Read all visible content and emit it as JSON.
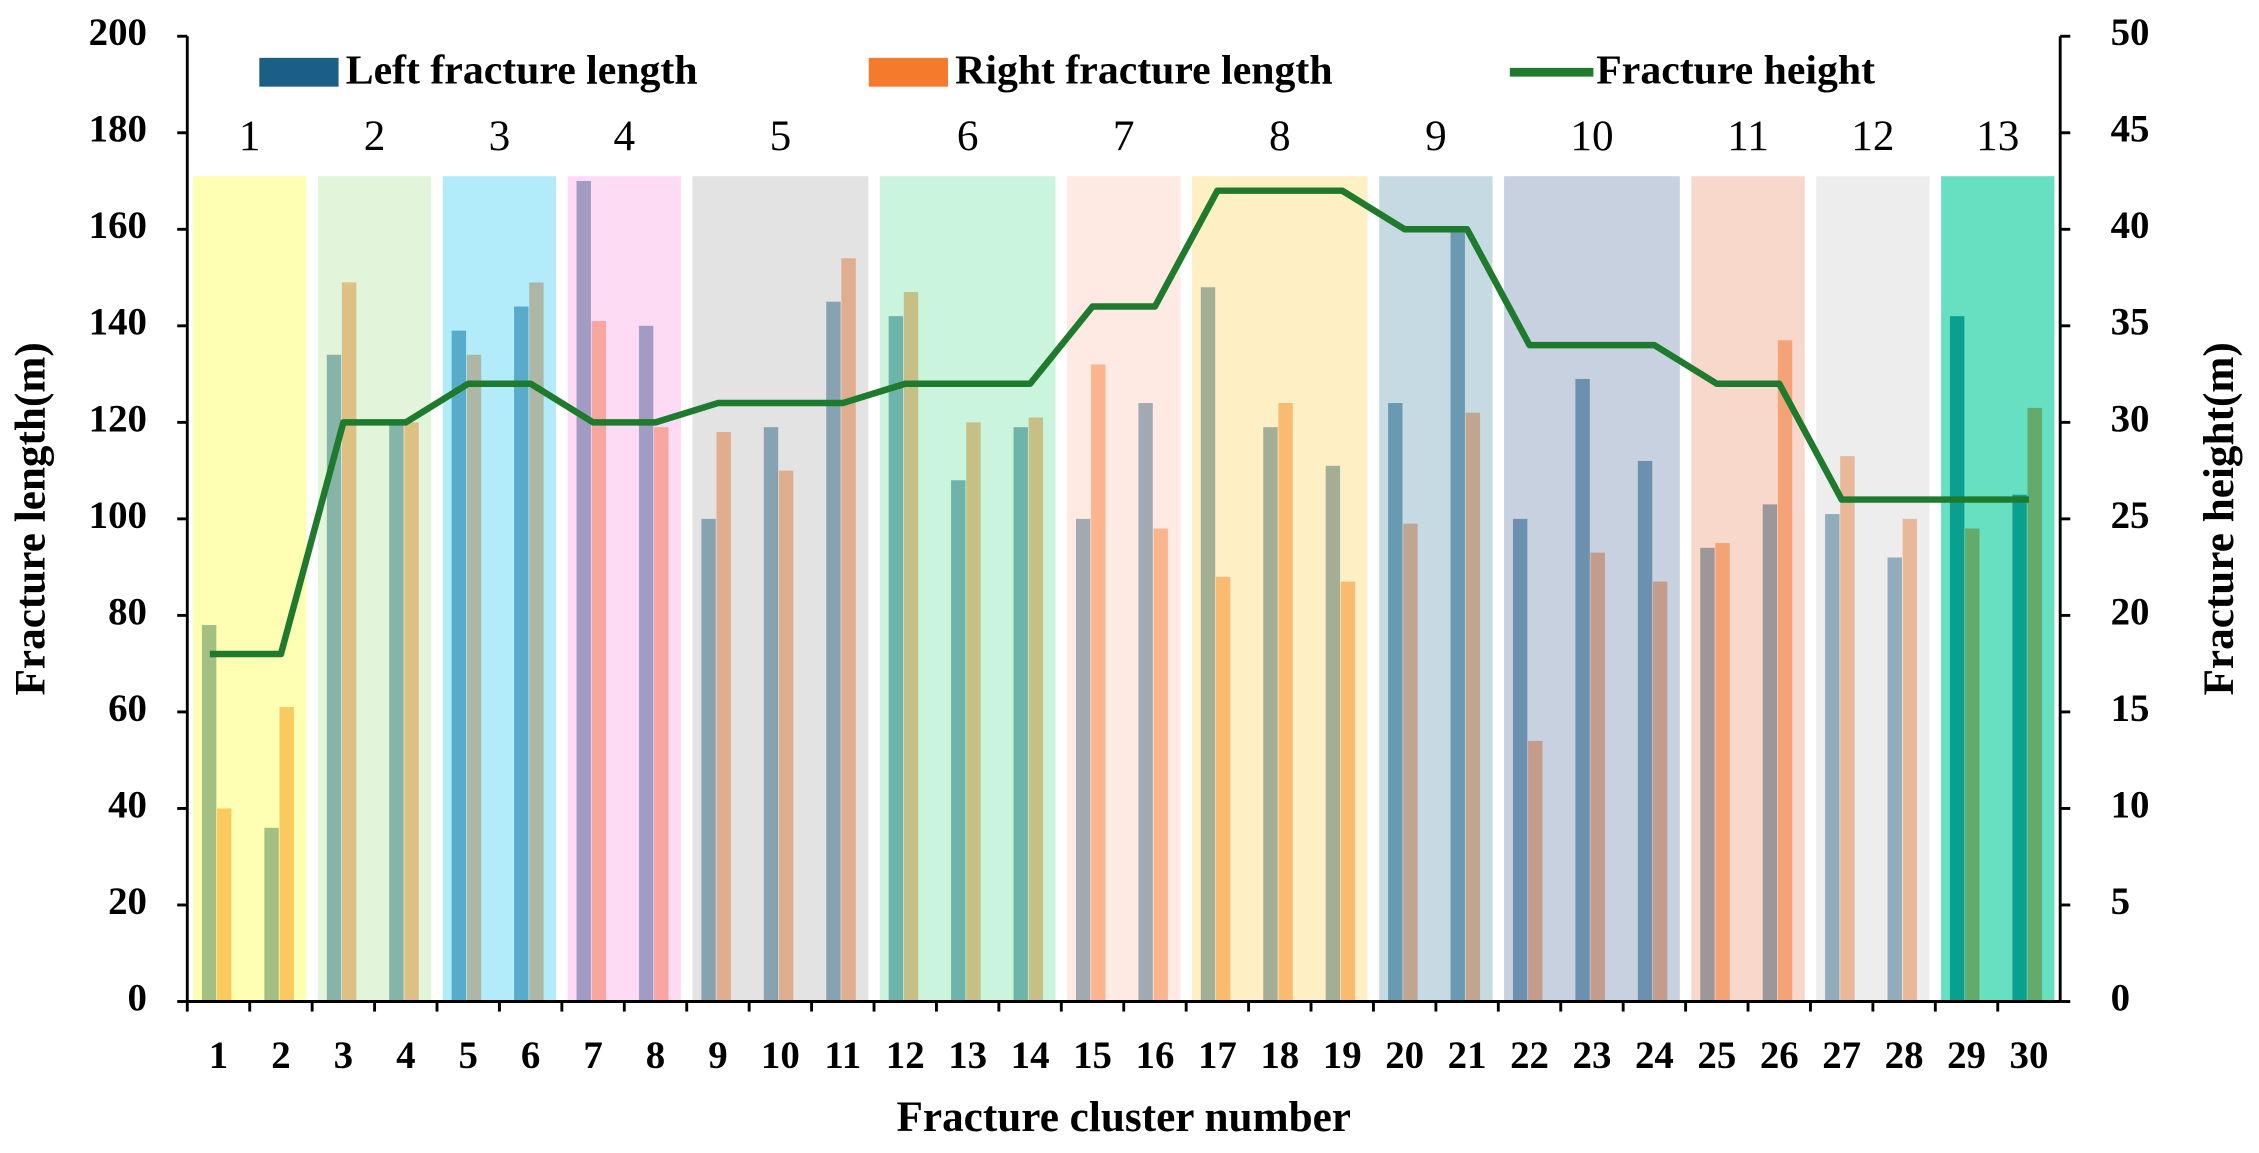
{
  "chart_data": {
    "type": "bar",
    "x_label": "Fracture cluster number",
    "y_label": "Fracture length(m)",
    "y2_label": "Fracture height(m)",
    "categories": [
      "1",
      "2",
      "3",
      "4",
      "5",
      "6",
      "7",
      "8",
      "9",
      "10",
      "11",
      "12",
      "13",
      "14",
      "15",
      "16",
      "17",
      "18",
      "19",
      "20",
      "21",
      "22",
      "23",
      "24",
      "25",
      "26",
      "27",
      "28",
      "29",
      "30"
    ],
    "series": [
      {
        "name": "Left fracture length",
        "type": "bar",
        "color": "#1b5f86",
        "values": [
          78,
          36,
          134,
          120,
          139,
          144,
          170,
          140,
          100,
          119,
          145,
          142,
          108,
          119,
          100,
          124,
          148,
          119,
          111,
          124,
          160,
          100,
          129,
          112,
          94,
          103,
          101,
          92,
          142,
          105
        ]
      },
      {
        "name": "Right fracture length",
        "type": "bar",
        "color": "#f57a2c",
        "values": [
          40,
          61,
          149,
          120,
          134,
          149,
          141,
          119,
          118,
          110,
          154,
          147,
          120,
          121,
          132,
          98,
          88,
          124,
          87,
          99,
          122,
          54,
          93,
          87,
          95,
          137,
          113,
          100,
          98,
          123
        ]
      },
      {
        "name": "Fracture height",
        "type": "line",
        "axis": "y2",
        "color": "#1e7a2c",
        "values": [
          18,
          18,
          30,
          30,
          32,
          32,
          30,
          30,
          31,
          31,
          31,
          32,
          32,
          32,
          36,
          36,
          42,
          42,
          42,
          40,
          40,
          34,
          34,
          34,
          32,
          32,
          26,
          26,
          26,
          26
        ]
      }
    ],
    "stages": [
      {
        "label": "1",
        "clusters": [
          1,
          2
        ],
        "color": "#ffff80"
      },
      {
        "label": "2",
        "clusters": [
          3,
          4
        ],
        "color": "#cfedbf"
      },
      {
        "label": "3",
        "clusters": [
          5,
          6
        ],
        "color": "#7fdff8"
      },
      {
        "label": "4",
        "clusters": [
          7,
          8
        ],
        "color": "#fdc3ee"
      },
      {
        "label": "5",
        "clusters": [
          9,
          10,
          11
        ],
        "color": "#d0d0d0"
      },
      {
        "label": "6",
        "clusters": [
          12,
          13,
          14
        ],
        "color": "#a7ecc3"
      },
      {
        "label": "7",
        "clusters": [
          15,
          16
        ],
        "color": "#fddccf"
      },
      {
        "label": "8",
        "clusters": [
          17,
          18,
          19
        ],
        "color": "#fde59e"
      },
      {
        "label": "9",
        "clusters": [
          20,
          21
        ],
        "color": "#9fc2d1"
      },
      {
        "label": "10",
        "clusters": [
          22,
          23,
          24
        ],
        "color": "#a3b2cb"
      },
      {
        "label": "11",
        "clusters": [
          25,
          26
        ],
        "color": "#f4bea8"
      },
      {
        "label": "12",
        "clusters": [
          27,
          28
        ],
        "color": "#e1e1e1"
      },
      {
        "label": "13",
        "clusters": [
          29,
          30
        ],
        "color": "#00cc96"
      }
    ],
    "stage_top": 171,
    "ylim": [
      0,
      200
    ],
    "yticks": [
      0,
      20,
      40,
      60,
      80,
      100,
      120,
      140,
      160,
      180,
      200
    ],
    "y2lim": [
      0,
      50
    ],
    "y2ticks": [
      0,
      5,
      10,
      15,
      20,
      25,
      30,
      35,
      40,
      45,
      50
    ],
    "grid": false,
    "legend": "top"
  }
}
